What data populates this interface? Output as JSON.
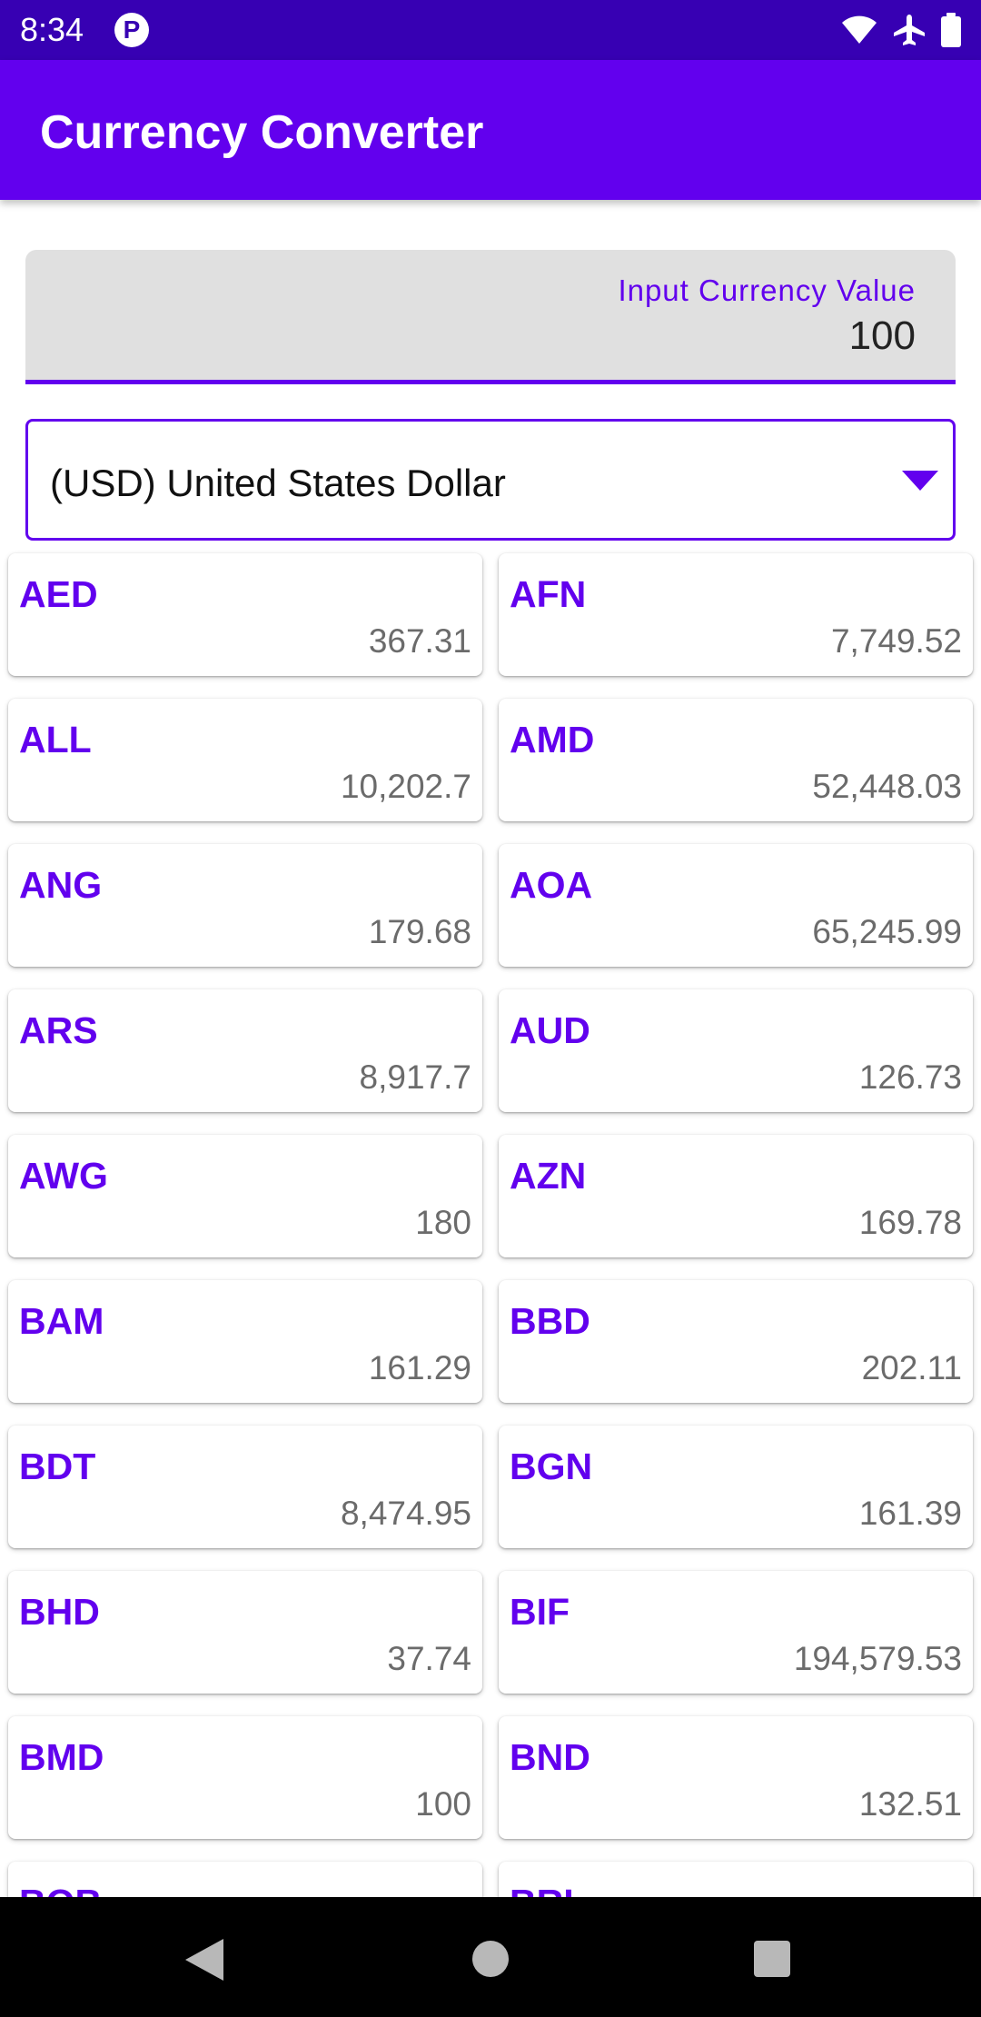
{
  "status_bar": {
    "time": "8:34",
    "app_icon_glyph": "P",
    "icons": [
      "wifi-icon",
      "airplane-icon",
      "battery-icon"
    ]
  },
  "app_bar": {
    "title": "Currency Converter"
  },
  "value_field": {
    "label": "Input Currency Value",
    "value": "100"
  },
  "currency_select": {
    "selected": "(USD) United States Dollar"
  },
  "currencies": [
    {
      "code": "AED",
      "value": "367.31"
    },
    {
      "code": "AFN",
      "value": "7,749.52"
    },
    {
      "code": "ALL",
      "value": "10,202.7"
    },
    {
      "code": "AMD",
      "value": "52,448.03"
    },
    {
      "code": "ANG",
      "value": "179.68"
    },
    {
      "code": "AOA",
      "value": "65,245.99"
    },
    {
      "code": "ARS",
      "value": "8,917.7"
    },
    {
      "code": "AUD",
      "value": "126.73"
    },
    {
      "code": "AWG",
      "value": "180"
    },
    {
      "code": "AZN",
      "value": "169.78"
    },
    {
      "code": "BAM",
      "value": "161.29"
    },
    {
      "code": "BBD",
      "value": "202.11"
    },
    {
      "code": "BDT",
      "value": "8,474.95"
    },
    {
      "code": "BGN",
      "value": "161.39"
    },
    {
      "code": "BHD",
      "value": "37.74"
    },
    {
      "code": "BIF",
      "value": "194,579.53"
    },
    {
      "code": "BMD",
      "value": "100"
    },
    {
      "code": "BND",
      "value": "132.51"
    },
    {
      "code": "BOB",
      "value": ""
    },
    {
      "code": "BRL",
      "value": ""
    }
  ],
  "colors": {
    "primary": "#6200ee",
    "primary_dark": "#3700b3",
    "value_text": "#6b6b6b"
  },
  "nav_bar": {
    "icons": [
      "back-icon",
      "home-icon",
      "recents-icon"
    ]
  }
}
